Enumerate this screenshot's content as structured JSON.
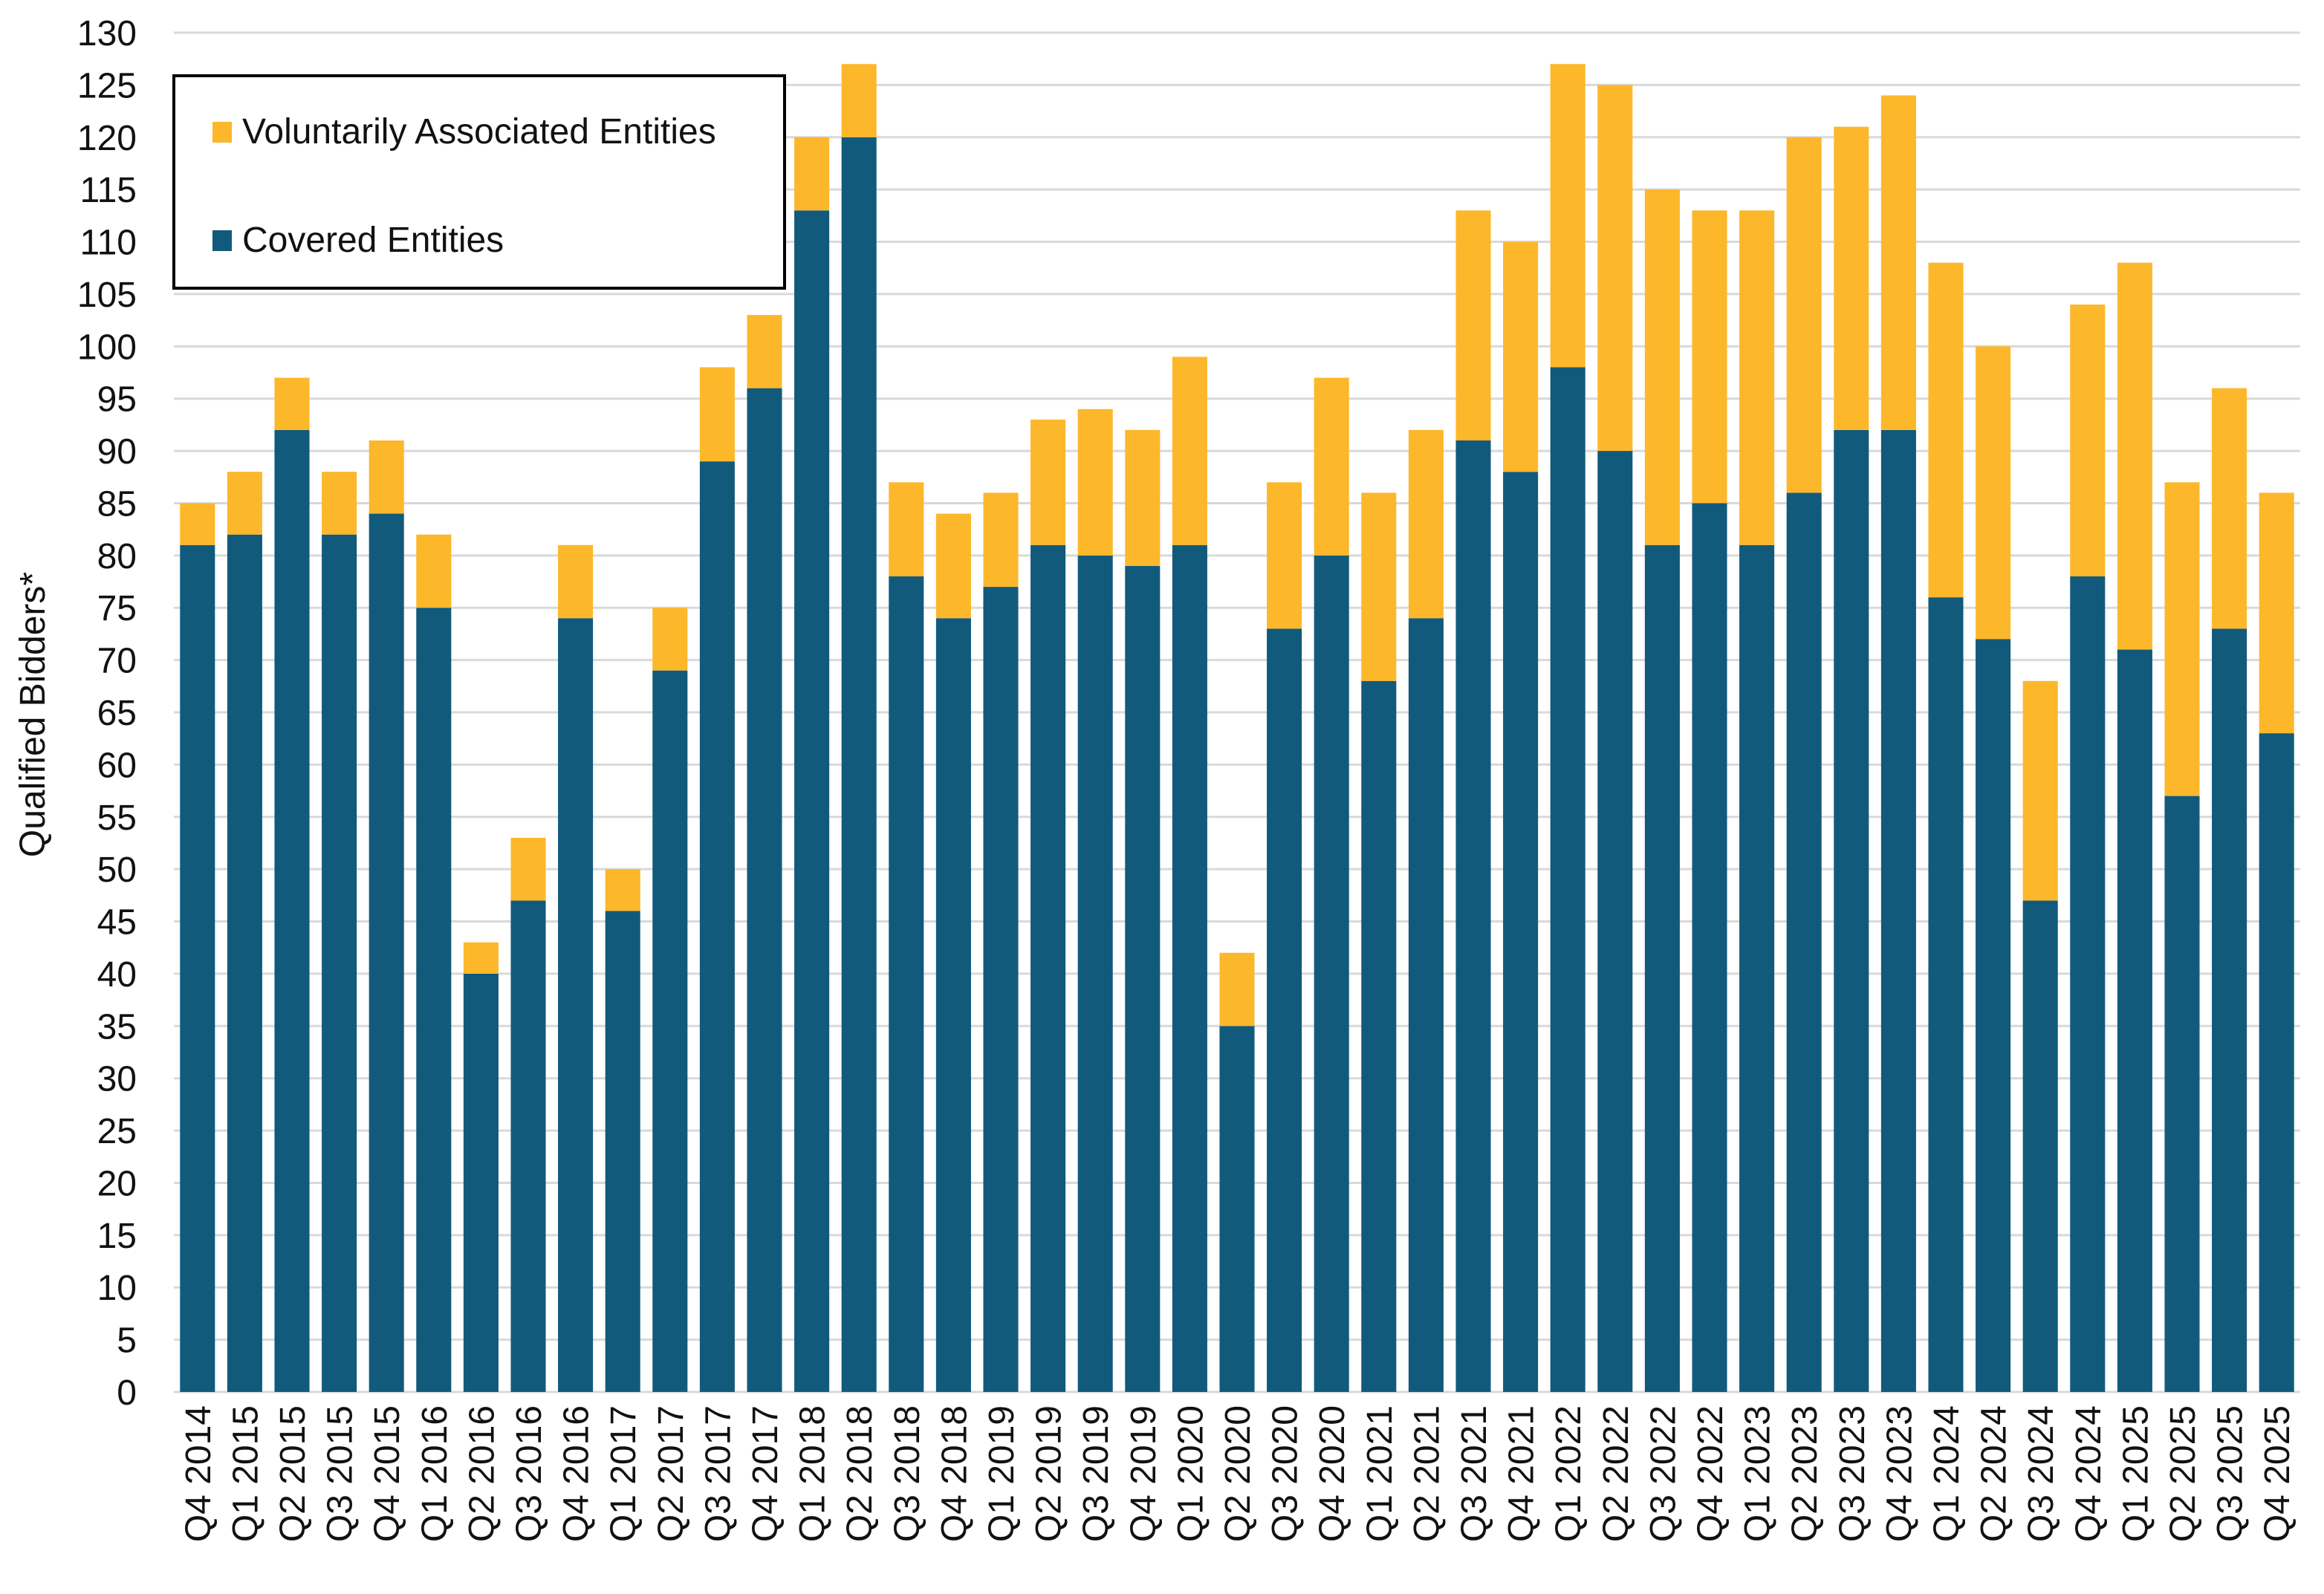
{
  "chart_data": {
    "type": "bar",
    "stacked": true,
    "title": "",
    "xlabel": "",
    "ylabel": "Qualified Bidders*",
    "ylim": [
      0,
      130
    ],
    "yticks": [
      0,
      5,
      10,
      15,
      20,
      25,
      30,
      35,
      40,
      45,
      50,
      55,
      60,
      65,
      70,
      75,
      80,
      85,
      90,
      95,
      100,
      105,
      110,
      115,
      120,
      125,
      130
    ],
    "grid": true,
    "legend_placement": "top-left",
    "categories": [
      "Q4 2014",
      "Q1 2015",
      "Q2 2015",
      "Q3 2015",
      "Q4 2015",
      "Q1 2016",
      "Q2 2016",
      "Q3 2016",
      "Q4 2016",
      "Q1 2017",
      "Q2 2017",
      "Q3 2017",
      "Q4 2017",
      "Q1 2018",
      "Q2 2018",
      "Q3 2018",
      "Q4 2018",
      "Q1 2019",
      "Q2 2019",
      "Q3 2019",
      "Q4 2019",
      "Q1 2020",
      "Q2 2020",
      "Q3 2020",
      "Q4 2020",
      "Q1 2021",
      "Q2 2021",
      "Q3 2021",
      "Q4 2021",
      "Q1 2022",
      "Q2 2022",
      "Q3 2022",
      "Q4 2022",
      "Q1 2023",
      "Q2 2023",
      "Q3 2023",
      "Q4 2023",
      "Q1 2024",
      "Q2 2024",
      "Q3 2024",
      "Q4 2024",
      "Q1 2025",
      "Q2 2025",
      "Q3 2025",
      "Q4 2025"
    ],
    "series": [
      {
        "name": "Covered Entities",
        "color": "#115a7c",
        "values": [
          81,
          82,
          92,
          82,
          84,
          75,
          40,
          47,
          74,
          46,
          69,
          89,
          96,
          113,
          120,
          78,
          74,
          77,
          81,
          80,
          79,
          81,
          35,
          73,
          80,
          68,
          74,
          91,
          88,
          98,
          90,
          81,
          85,
          81,
          86,
          92,
          92,
          76,
          72,
          47,
          78,
          71,
          57,
          73,
          63
        ]
      },
      {
        "name": "Voluntarily Associated Entities",
        "color": "#fdb72b",
        "values": [
          4,
          6,
          5,
          6,
          7,
          7,
          3,
          6,
          7,
          4,
          6,
          9,
          7,
          7,
          7,
          9,
          10,
          9,
          12,
          14,
          13,
          18,
          7,
          14,
          17,
          18,
          18,
          22,
          22,
          29,
          35,
          34,
          28,
          32,
          34,
          29,
          32,
          32,
          28,
          21,
          26,
          37,
          30,
          23,
          23
        ]
      }
    ],
    "legend": [
      "Voluntarily Associated Entities",
      "Covered Entities"
    ]
  }
}
